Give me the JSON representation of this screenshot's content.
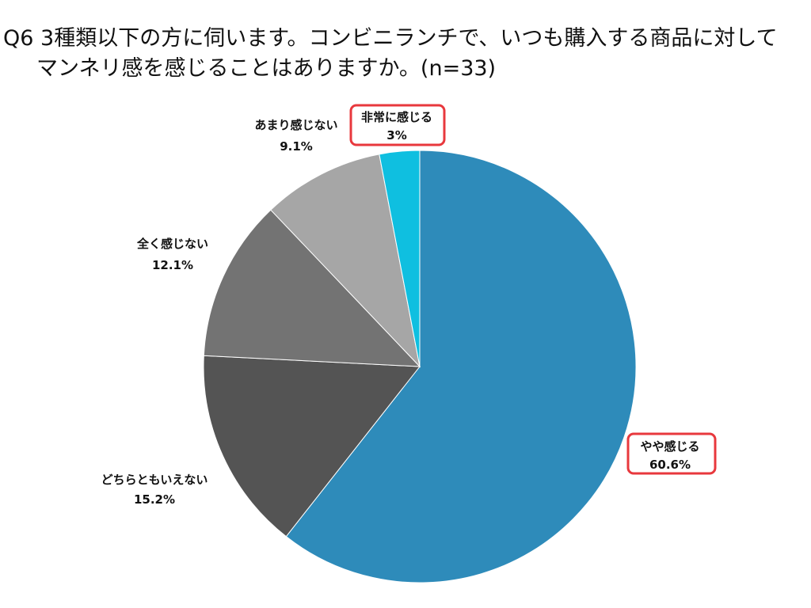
{
  "title": {
    "line1": "Q6 3種類以下の方に伺います。コンビニランチで、いつも購入する商品に対して",
    "line2": "マンネリ感を感じることはありますか。(n=33)"
  },
  "chart_data": {
    "type": "pie",
    "n": 33,
    "start_angle": "12 o'clock",
    "direction": "clockwise",
    "slices": [
      {
        "label": "やや感じる",
        "value": 60.6,
        "value_label": "60.6%",
        "color": "#2e8bba",
        "highlighted": true
      },
      {
        "label": "どちらともいえない",
        "value": 15.2,
        "value_label": "15.2%",
        "color": "#545454",
        "highlighted": false
      },
      {
        "label": "全く感じない",
        "value": 12.1,
        "value_label": "12.1%",
        "color": "#737373",
        "highlighted": false
      },
      {
        "label": "あまり感じない",
        "value": 9.1,
        "value_label": "9.1%",
        "color": "#a6a6a6",
        "highlighted": false
      },
      {
        "label": "非常に感じる",
        "value": 3,
        "value_label": "3%",
        "color": "#0fbfe0",
        "highlighted": true
      }
    ],
    "highlight_color": "#e8383d"
  }
}
